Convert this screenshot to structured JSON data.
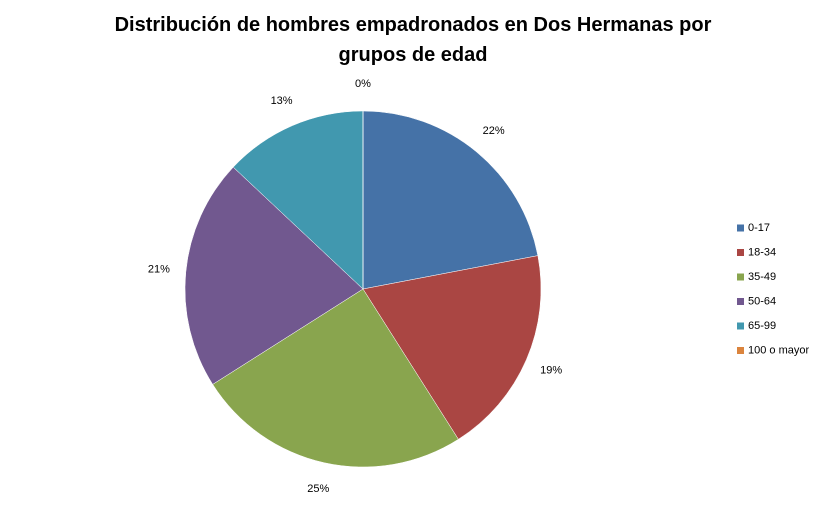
{
  "chart_data": {
    "type": "pie",
    "title": "Distribución de hombres empadronados en Dos Hermanas por grupos de edad",
    "categories": [
      "0-17",
      "18-34",
      "35-49",
      "50-64",
      "65-99",
      "100 o mayor"
    ],
    "values": [
      22,
      19,
      25,
      21,
      13,
      0
    ],
    "value_labels": [
      "22%",
      "19%",
      "25%",
      "21%",
      "13%",
      "0%"
    ],
    "colors": [
      "#4572a7",
      "#aa4643",
      "#89a54e",
      "#71588f",
      "#4198af",
      "#db843d"
    ],
    "legend": "right"
  }
}
